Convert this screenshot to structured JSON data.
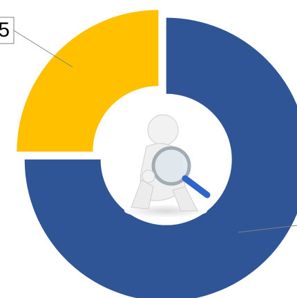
{
  "chart_data": {
    "type": "donut",
    "values": [
      75,
      25
    ],
    "colors": [
      "#2f5597",
      "#ffc000"
    ],
    "annotation": "5"
  }
}
